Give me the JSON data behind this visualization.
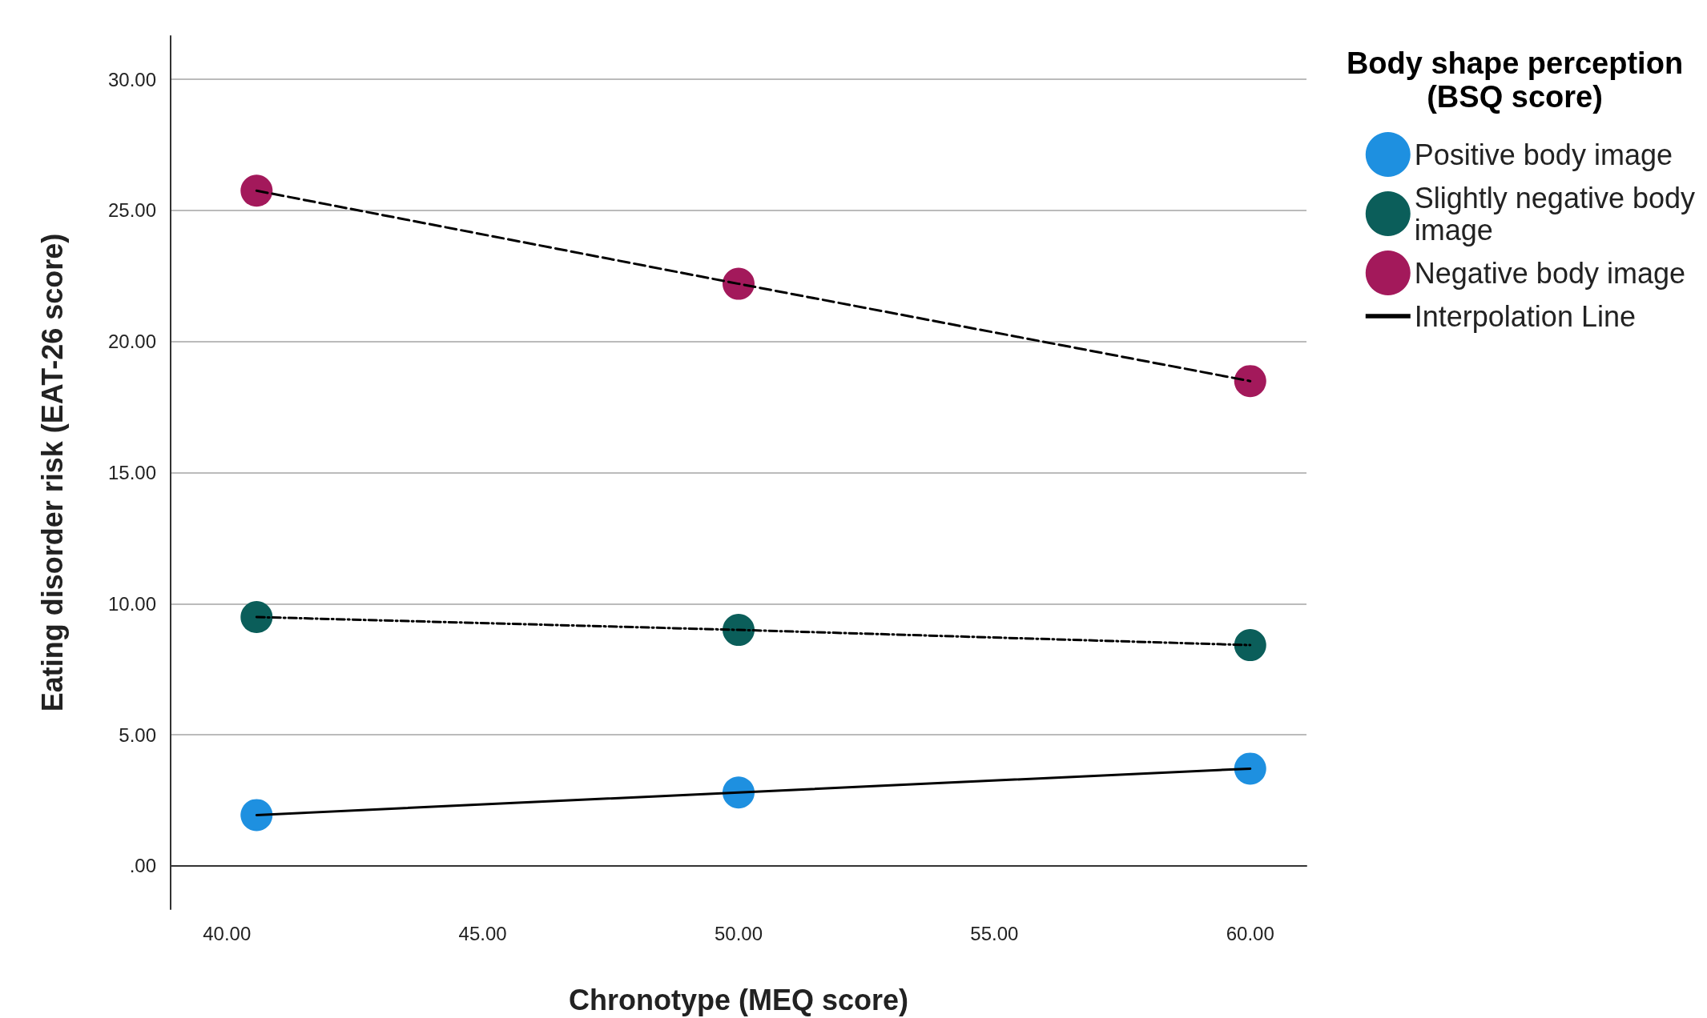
{
  "chart_data": {
    "type": "scatter",
    "xlabel": "Chronotype (MEQ score)",
    "ylabel": "Eating disorder risk (EAT-26 score)",
    "legend_title": "Body shape perception (BSQ score)",
    "series": [
      {
        "name": "Positive body image",
        "color": "#1e90e0",
        "x": [
          40.58,
          50,
          60
        ],
        "values": [
          1.94,
          2.8,
          3.71
        ],
        "marker": "circle"
      },
      {
        "name": "Slightly negative body image",
        "color": "#0b5e5a",
        "x": [
          40.58,
          50,
          60
        ],
        "values": [
          9.49,
          9.0,
          8.42
        ],
        "marker": "circle"
      },
      {
        "name": "Negative body image",
        "color": "#a3195b",
        "x": [
          40.58,
          50,
          60
        ],
        "values": [
          25.75,
          22.2,
          18.49
        ],
        "marker": "circle"
      },
      {
        "name": "Interpolation Line",
        "type": "line",
        "color": "#000000",
        "x": [
          40.58,
          50,
          60
        ],
        "values": [
          1.94,
          2.8,
          3.71
        ],
        "marker": "none",
        "line_style": "solid"
      },
      {
        "type": "line",
        "color": "#000000",
        "x": [
          40.58,
          50,
          60
        ],
        "values": [
          9.49,
          9.0,
          8.42
        ],
        "marker": "none",
        "line_style": "dotted"
      },
      {
        "type": "line",
        "color": "#000000",
        "x": [
          40.58,
          50,
          60
        ],
        "values": [
          25.75,
          22.2,
          18.49
        ],
        "marker": "none",
        "line_style": "dashed"
      }
    ],
    "xlim": [
      38.9,
      61.1
    ],
    "ylim": [
      -1.65,
      31.65
    ],
    "xticks": [
      {
        "value": 40,
        "label": "40.00"
      },
      {
        "value": 45,
        "label": "45.00"
      },
      {
        "value": 50,
        "label": "50.00"
      },
      {
        "value": 55,
        "label": "55.00"
      },
      {
        "value": 60,
        "label": "60.00"
      }
    ],
    "yticks": [
      {
        "value": 0,
        "label": ".00"
      },
      {
        "value": 5,
        "label": "5.00"
      },
      {
        "value": 10,
        "label": "10.00"
      },
      {
        "value": 15,
        "label": "15.00"
      },
      {
        "value": 20,
        "label": "20.00"
      },
      {
        "value": 25,
        "label": "25.00"
      },
      {
        "value": 30,
        "label": "30.00"
      }
    ],
    "grid": "y",
    "legend": "top right"
  }
}
